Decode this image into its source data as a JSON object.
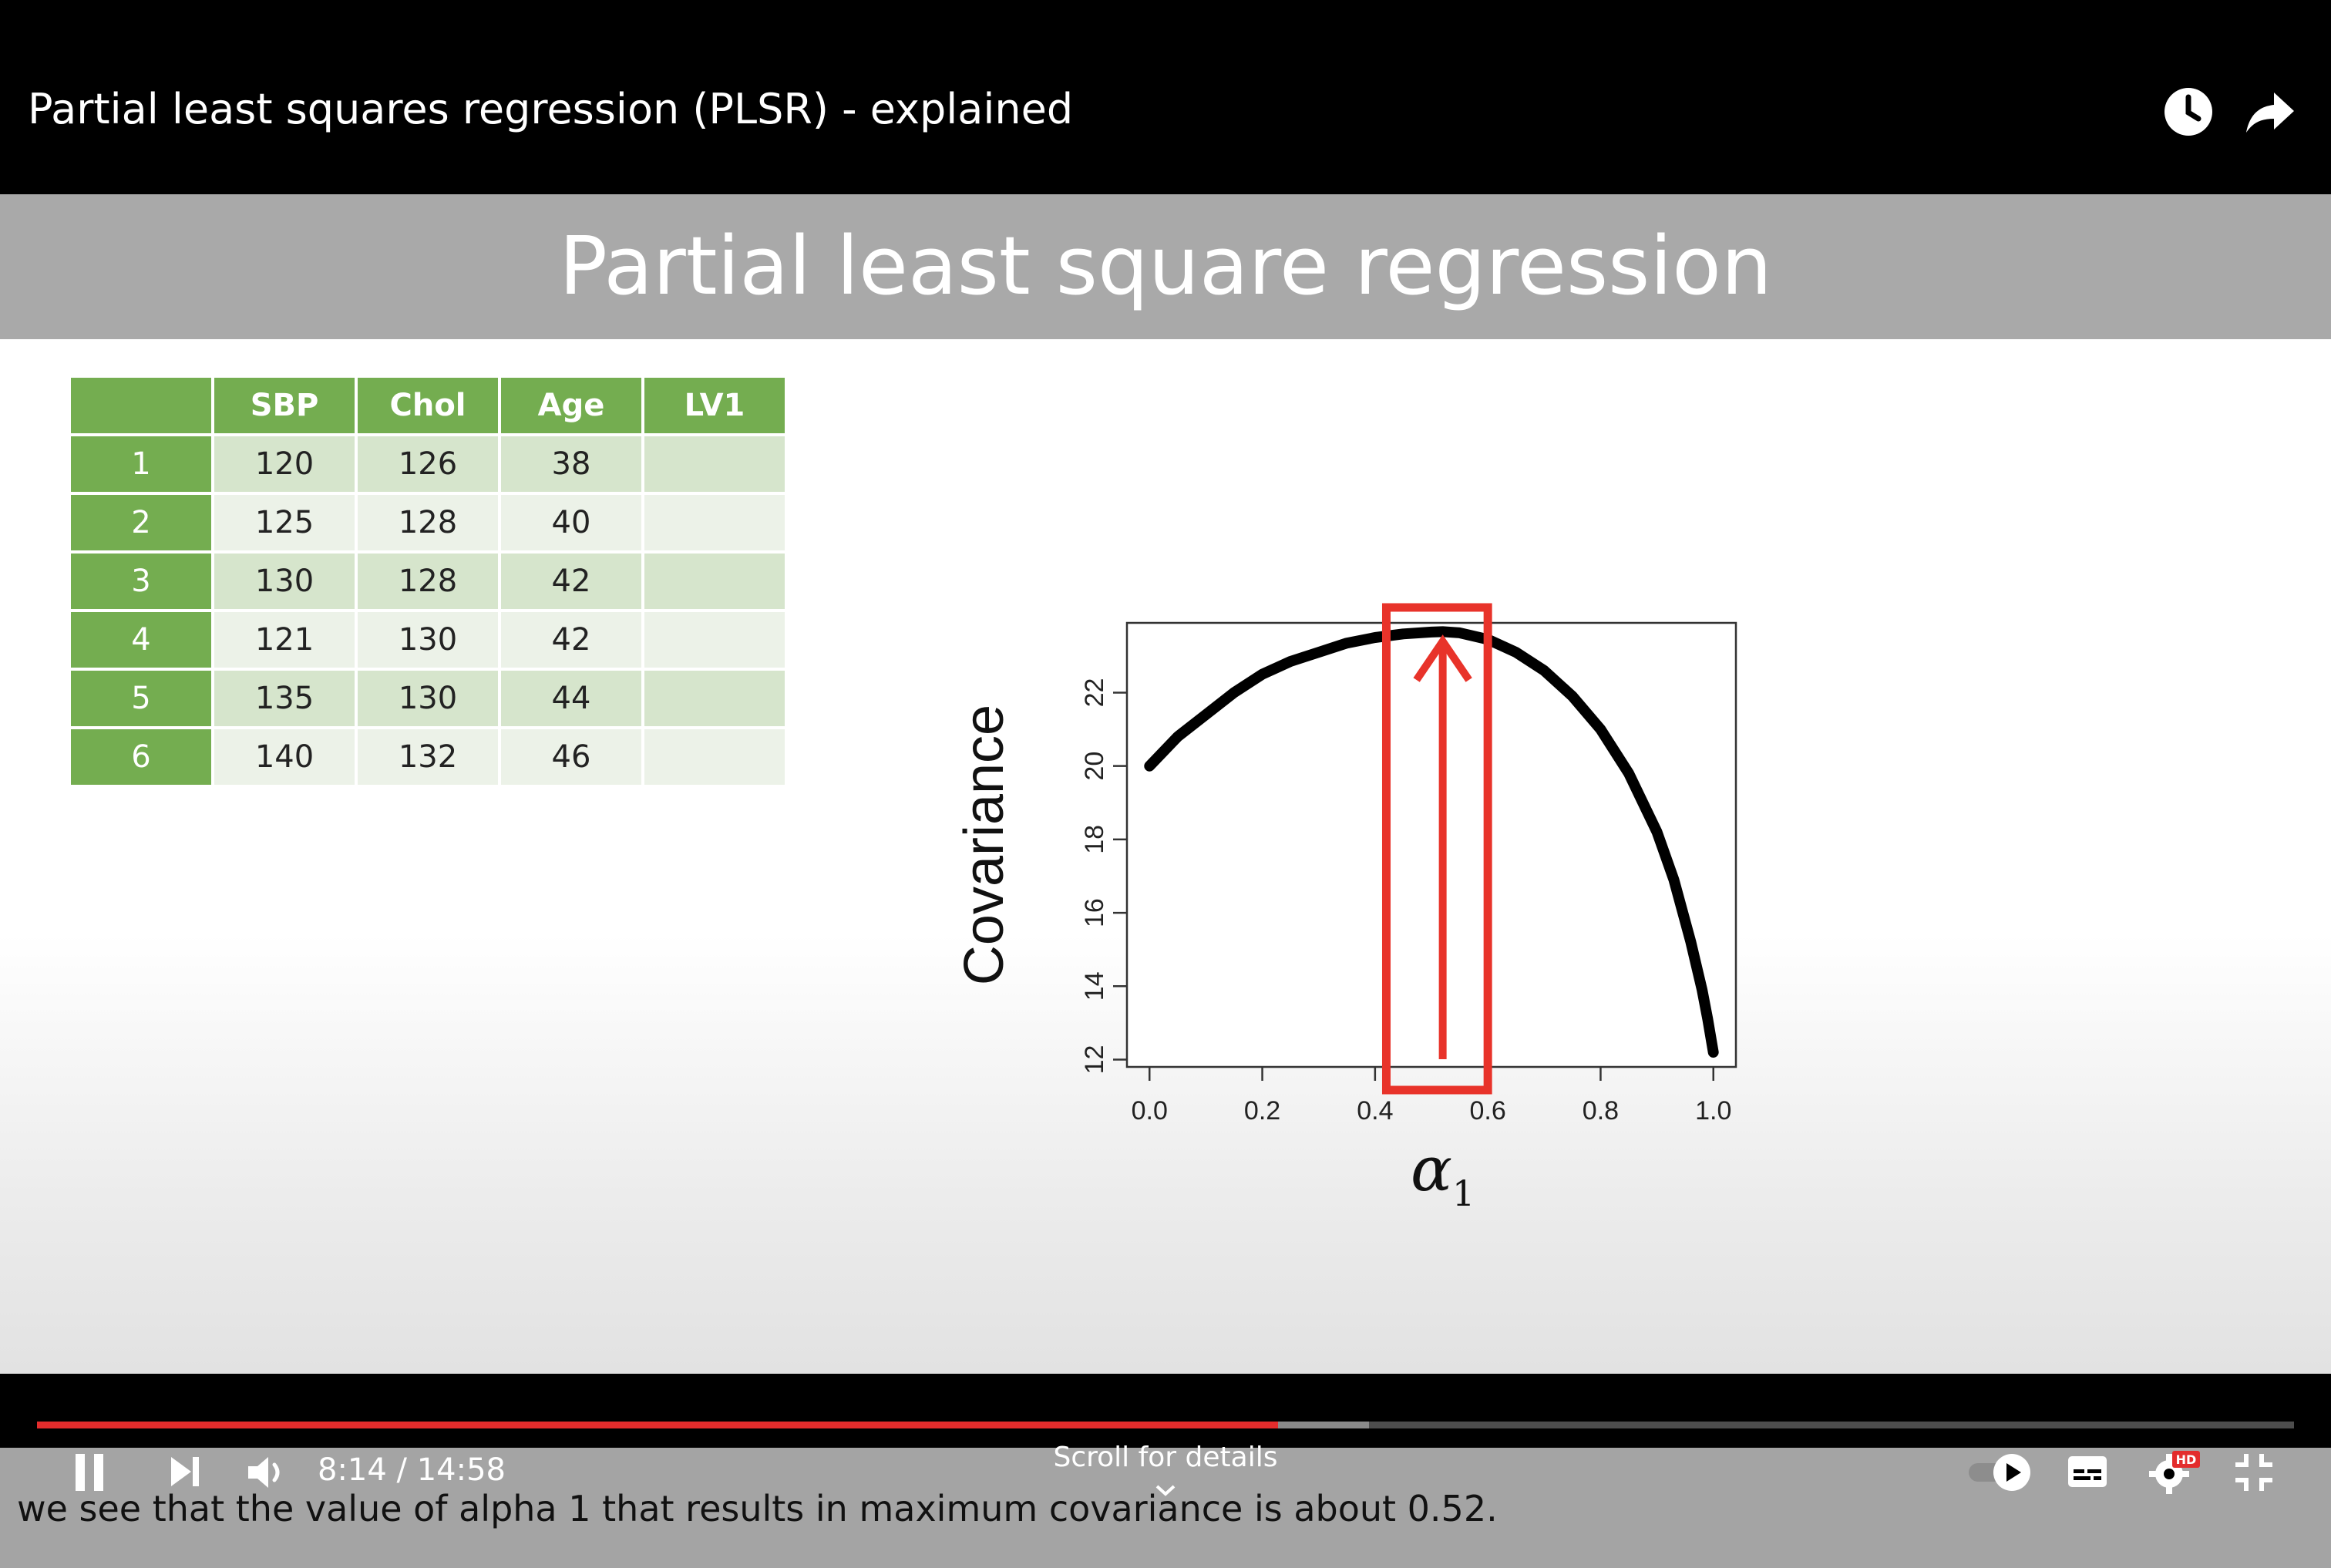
{
  "player": {
    "video_title": "Partial least squares regression (PLSR) - explained",
    "time_current": "8:14",
    "time_total": "14:58",
    "time_sep": " / ",
    "progress_played": 0.55,
    "progress_buffered": 0.59,
    "scroll_hint": "Scroll for details",
    "hd_badge": "HD",
    "icons": {
      "watch_later": "clock-icon",
      "share": "share-icon",
      "play_pause": "pause-icon",
      "next": "next-icon",
      "volume": "volume-icon",
      "autoplay": "autoplay-toggle-icon",
      "captions": "captions-icon",
      "settings": "gear-icon",
      "fullscreen": "exit-fullscreen-icon",
      "scroll": "chevron-down-icon"
    }
  },
  "slide": {
    "title": "Partial least square regression",
    "caption": "we see that the value of alpha 1 that results in maximum covariance is about 0.52.",
    "table": {
      "columns": [
        "",
        "SBP",
        "Chol",
        "Age",
        "LV1"
      ],
      "rows": [
        [
          "1",
          "120",
          "126",
          "38",
          ""
        ],
        [
          "2",
          "125",
          "128",
          "40",
          ""
        ],
        [
          "3",
          "130",
          "128",
          "42",
          ""
        ],
        [
          "4",
          "121",
          "130",
          "42",
          ""
        ],
        [
          "5",
          "135",
          "130",
          "44",
          ""
        ],
        [
          "6",
          "140",
          "132",
          "46",
          ""
        ]
      ]
    }
  },
  "chart_data": {
    "type": "line",
    "title": "",
    "xlabel": "α1",
    "ylabel": "Covariance",
    "xlim": [
      -0.04,
      1.04
    ],
    "ylim": [
      11.8,
      23.9
    ],
    "xticks": [
      "0.0",
      "0.2",
      "0.4",
      "0.6",
      "0.8",
      "1.0"
    ],
    "yticks": [
      "12",
      "14",
      "16",
      "18",
      "20",
      "22"
    ],
    "grid": false,
    "series": [
      {
        "x": [
          0.0,
          0.05,
          0.1,
          0.15,
          0.2,
          0.25,
          0.3,
          0.35,
          0.4,
          0.45,
          0.5,
          0.52,
          0.55,
          0.6,
          0.65,
          0.7,
          0.75,
          0.8,
          0.85,
          0.9,
          0.93,
          0.96,
          0.98,
          0.99,
          1.0
        ],
        "y": [
          20.0,
          20.8,
          21.4,
          22.0,
          22.5,
          22.85,
          23.1,
          23.35,
          23.5,
          23.6,
          23.65,
          23.66,
          23.63,
          23.45,
          23.1,
          22.6,
          21.9,
          21.0,
          19.8,
          18.2,
          16.9,
          15.2,
          13.9,
          13.1,
          12.2
        ]
      }
    ],
    "annotation": {
      "type": "highlight-box-with-arrow",
      "x_range": [
        0.42,
        0.6
      ],
      "arrow_x": 0.52,
      "color": "#e8332a"
    }
  }
}
